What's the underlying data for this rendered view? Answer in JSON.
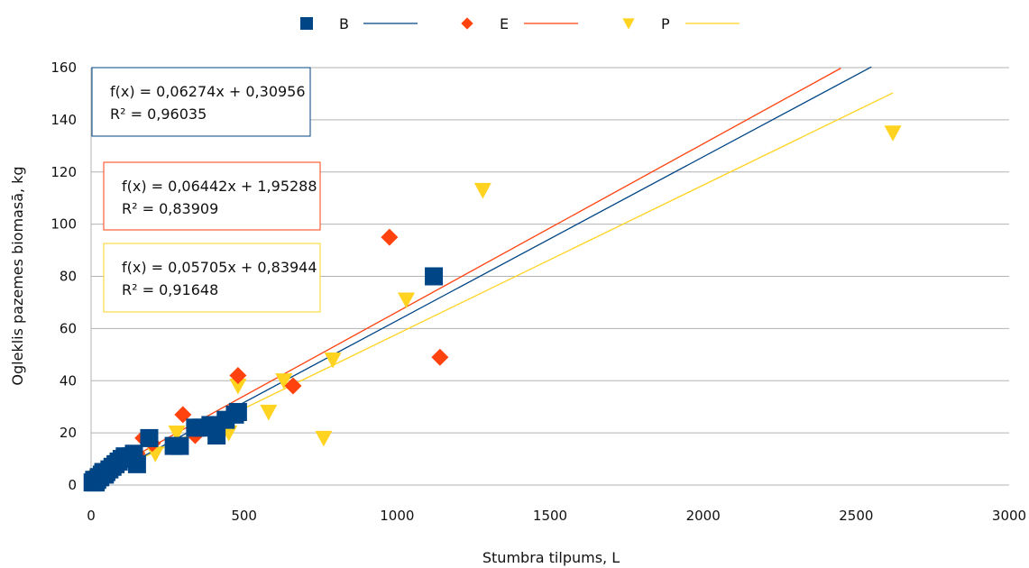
{
  "chart_data": {
    "type": "scatter",
    "xlabel": "Stumbra tilpums, L",
    "ylabel": "Ogleklis pazemes biomasā, kg",
    "xlim": [
      0,
      3000
    ],
    "ylim": [
      0,
      160
    ],
    "x_ticks": [
      "0",
      "500",
      "1000",
      "1500",
      "2000",
      "2500",
      "3000"
    ],
    "y_ticks": [
      "0",
      "20",
      "40",
      "60",
      "80",
      "100",
      "120",
      "140",
      "160"
    ],
    "grid": "horizontal",
    "legend_position": "top-center",
    "series": [
      {
        "name": "B",
        "marker": "square",
        "color": "#004586",
        "points": [
          [
            5,
            1
          ],
          [
            10,
            2
          ],
          [
            15,
            1
          ],
          [
            20,
            2
          ],
          [
            25,
            3
          ],
          [
            30,
            3
          ],
          [
            35,
            4
          ],
          [
            40,
            5
          ],
          [
            45,
            4
          ],
          [
            50,
            5
          ],
          [
            60,
            6
          ],
          [
            70,
            7
          ],
          [
            80,
            8
          ],
          [
            90,
            9
          ],
          [
            100,
            10
          ],
          [
            110,
            11
          ],
          [
            120,
            10
          ],
          [
            130,
            11
          ],
          [
            140,
            12
          ],
          [
            150,
            8
          ],
          [
            190,
            18
          ],
          [
            270,
            15
          ],
          [
            290,
            15
          ],
          [
            340,
            22
          ],
          [
            360,
            22
          ],
          [
            390,
            23
          ],
          [
            410,
            19
          ],
          [
            440,
            25
          ],
          [
            470,
            27
          ],
          [
            480,
            28
          ],
          [
            1120,
            80
          ]
        ],
        "trend": {
          "slope": 0.06274,
          "intercept": 0.30956,
          "x_end": 2550
        },
        "equation": "f(x) = 0,06274x + 0,30956",
        "r2": "R² = 0,96035"
      },
      {
        "name": "E",
        "marker": "diamond",
        "color": "#ff420e",
        "points": [
          [
            20,
            3
          ],
          [
            40,
            5
          ],
          [
            70,
            7
          ],
          [
            100,
            9
          ],
          [
            150,
            12
          ],
          [
            170,
            18
          ],
          [
            200,
            16
          ],
          [
            300,
            27
          ],
          [
            340,
            19
          ],
          [
            480,
            42
          ],
          [
            660,
            38
          ],
          [
            975,
            95
          ],
          [
            1140,
            49
          ]
        ],
        "trend": {
          "slope": 0.06442,
          "intercept": 1.95288,
          "x_end": 2450
        },
        "equation": "f(x) = 0,06442x + 1,95288",
        "r2": "R² = 0,83909"
      },
      {
        "name": "P",
        "marker": "triangle-down",
        "color": "#ffd320",
        "points": [
          [
            20,
            3
          ],
          [
            80,
            7
          ],
          [
            150,
            10
          ],
          [
            210,
            12
          ],
          [
            280,
            20
          ],
          [
            450,
            20
          ],
          [
            480,
            38
          ],
          [
            580,
            28
          ],
          [
            630,
            40
          ],
          [
            760,
            18
          ],
          [
            790,
            48
          ],
          [
            1030,
            71
          ],
          [
            1280,
            113
          ],
          [
            2620,
            135
          ]
        ],
        "trend": {
          "slope": 0.05705,
          "intercept": 0.83944,
          "x_end": 2620
        },
        "equation": "f(x) = 0,05705x + 0,83944",
        "r2": "R² = 0,91648"
      }
    ]
  }
}
